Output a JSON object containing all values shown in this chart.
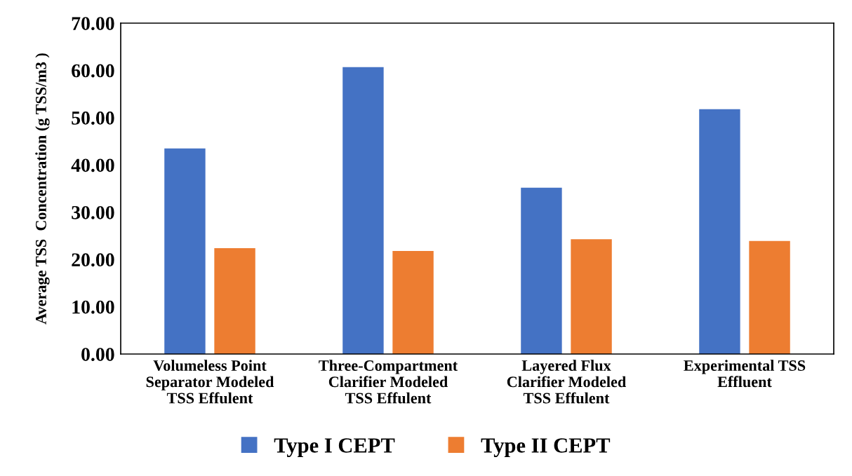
{
  "chart_data": {
    "type": "bar",
    "ylabel": "Average TSS  Concentration (g TSS/m3 )",
    "categories": [
      "Volumeless Point\nSeparator Modeled\nTSS Effulent",
      "Three-Compartment\nClarifier Modeled\nTSS Effulent",
      "Layered Flux\nClarifier Modeled\nTSS Effulent",
      "Experimental TSS\nEffluent"
    ],
    "series": [
      {
        "name": "Type I CEPT",
        "color": "#4472c4",
        "values": [
          43.5,
          60.7,
          35.2,
          51.8
        ]
      },
      {
        "name": "Type II CEPT",
        "color": "#ed7d31",
        "values": [
          22.4,
          21.8,
          24.3,
          23.9
        ]
      }
    ],
    "ylim": [
      0,
      70
    ],
    "yticks": [
      {
        "value": 0,
        "label": "0.00"
      },
      {
        "value": 10,
        "label": "10.00"
      },
      {
        "value": 20,
        "label": "20.00"
      },
      {
        "value": 30,
        "label": "30.00"
      },
      {
        "value": 40,
        "label": "40.00"
      },
      {
        "value": 50,
        "label": "50.00"
      },
      {
        "value": 60,
        "label": "60.00"
      },
      {
        "value": 70,
        "label": "70.00"
      }
    ],
    "grid": false,
    "legend": "bottom"
  }
}
